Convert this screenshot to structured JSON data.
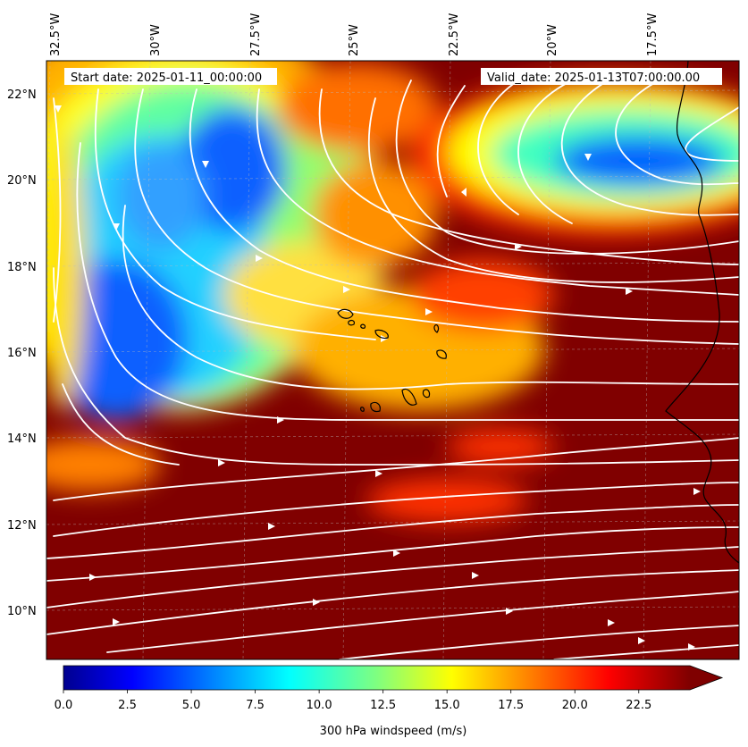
{
  "header": {
    "start_date": "Start date: 2025-01-11_00:00:00",
    "valid_date": "Valid_date: 2025-01-13T07:00:00.00"
  },
  "axes": {
    "lon_ticks": [
      "32.5°W",
      "30°W",
      "27.5°W",
      "25°W",
      "22.5°W",
      "20°W",
      "17.5°W"
    ],
    "lat_ticks": [
      "22°N",
      "20°N",
      "18°N",
      "16°N",
      "14°N",
      "12°N",
      "10°N"
    ]
  },
  "colorbar": {
    "label": "300 hPa windspeed (m/s)",
    "ticks": [
      "0.0",
      "2.5",
      "5.0",
      "7.5",
      "10.0",
      "12.5",
      "15.0",
      "17.5",
      "20.0",
      "22.5"
    ],
    "extend": "max",
    "colormap": "jet"
  },
  "map_data": {
    "field": "300 hPa windspeed",
    "units": "m/s",
    "lon_range": [
      -33,
      -15.3
    ],
    "lat_range": [
      8.8,
      22.8
    ],
    "overlay": "streamlines",
    "streamline_color": "#ffffff",
    "coastline_color": "#000000"
  }
}
